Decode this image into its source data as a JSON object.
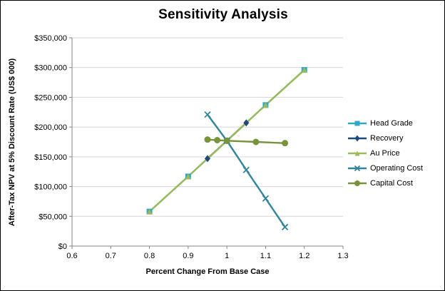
{
  "chart_data": {
    "type": "line",
    "title": "Sensitivity Analysis",
    "xlabel": "Percent Change  From Base Case",
    "ylabel": "After-Tax NPV at 5% Discount Rate (US$ 000)",
    "xlim": [
      0.6,
      1.3
    ],
    "ylim": [
      0,
      350000
    ],
    "x_ticks": [
      0.6,
      0.7,
      0.8,
      0.9,
      1.0,
      1.1,
      1.2,
      1.3
    ],
    "x_tick_labels": [
      "0.6",
      "0.7",
      "0.8",
      "0.9",
      "1",
      "1.1",
      "1.2",
      "1.3"
    ],
    "y_ticks": [
      0,
      50000,
      100000,
      150000,
      200000,
      250000,
      300000,
      350000
    ],
    "y_tick_labels": [
      "$0",
      "$50,000",
      "$100,000",
      "$150,000",
      "$200,000",
      "$250,000",
      "$300,000",
      "$350,000"
    ],
    "grid": true,
    "legend_position": "right",
    "axis_color": "#868686",
    "gridline_color": "#D6D6D6",
    "series": [
      {
        "name": "Head Grade",
        "color": "#31A8C4",
        "marker": "square",
        "x": [
          0.8,
          0.9,
          1.0,
          1.1,
          1.2
        ],
        "values": [
          58000,
          117000,
          177000,
          237000,
          296000
        ]
      },
      {
        "name": "Recovery",
        "color": "#1F497D",
        "marker": "diamond",
        "x": [
          0.95,
          1.0,
          1.05
        ],
        "values": [
          147000,
          177000,
          207000
        ]
      },
      {
        "name": "Au Price",
        "color": "#9BBB59",
        "marker": "triangle",
        "x": [
          0.8,
          0.9,
          1.0,
          1.1,
          1.2
        ],
        "values": [
          58000,
          117000,
          177000,
          237000,
          296000
        ]
      },
      {
        "name": "Operating Cost",
        "color": "#31859C",
        "marker": "x",
        "x": [
          0.95,
          1.0,
          1.05,
          1.1,
          1.15
        ],
        "values": [
          221000,
          177000,
          128000,
          80000,
          32000
        ]
      },
      {
        "name": "Capital Cost",
        "color": "#77933C",
        "marker": "circle",
        "x": [
          0.95,
          0.975,
          1.0,
          1.075,
          1.15
        ],
        "values": [
          179000,
          178000,
          177000,
          175000,
          173000
        ]
      }
    ]
  }
}
